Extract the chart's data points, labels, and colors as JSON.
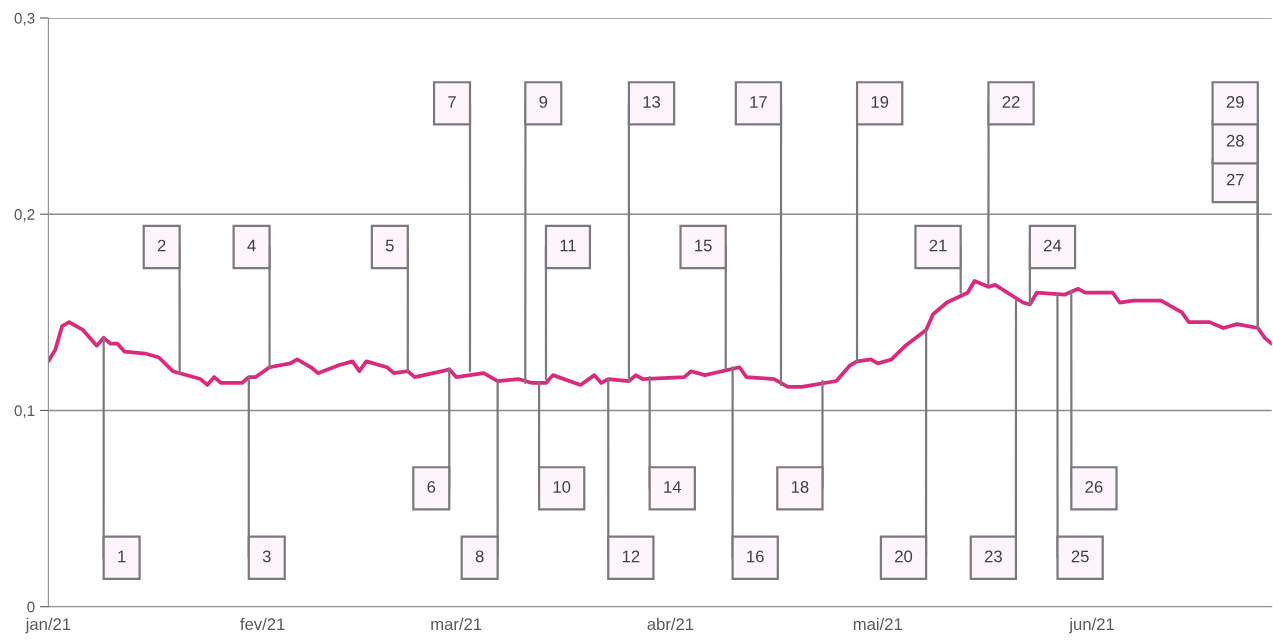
{
  "chart_data": {
    "type": "line",
    "x": [
      "2021-01-01",
      "2021-01-02",
      "2021-01-03",
      "2021-01-04",
      "2021-01-06",
      "2021-01-08",
      "2021-01-09",
      "2021-01-10",
      "2021-01-11",
      "2021-01-12",
      "2021-01-15",
      "2021-01-17",
      "2021-01-19",
      "2021-01-23",
      "2021-01-24",
      "2021-01-25",
      "2021-01-26",
      "2021-01-29",
      "2021-01-30",
      "2021-01-31",
      "2021-02-02",
      "2021-02-05",
      "2021-02-06",
      "2021-02-08",
      "2021-02-09",
      "2021-02-12",
      "2021-02-14",
      "2021-02-15",
      "2021-02-16",
      "2021-02-19",
      "2021-02-20",
      "2021-02-22",
      "2021-02-23",
      "2021-02-27",
      "2021-02-28",
      "2021-03-01",
      "2021-03-05",
      "2021-03-07",
      "2021-03-10",
      "2021-03-12",
      "2021-03-14",
      "2021-03-15",
      "2021-03-19",
      "2021-03-21",
      "2021-03-22",
      "2021-03-23",
      "2021-03-26",
      "2021-03-27",
      "2021-03-28",
      "2021-04-03",
      "2021-04-04",
      "2021-04-06",
      "2021-04-11",
      "2021-04-12",
      "2021-04-16",
      "2021-04-18",
      "2021-04-20",
      "2021-04-25",
      "2021-04-27",
      "2021-04-28",
      "2021-04-30",
      "2021-05-01",
      "2021-05-03",
      "2021-05-05",
      "2021-05-08",
      "2021-05-09",
      "2021-05-11",
      "2021-05-14",
      "2021-05-15",
      "2021-05-17",
      "2021-05-18",
      "2021-05-22",
      "2021-05-23",
      "2021-05-24",
      "2021-05-28",
      "2021-05-30",
      "2021-05-31",
      "2021-06-04",
      "2021-06-05",
      "2021-06-07",
      "2021-06-11",
      "2021-06-14",
      "2021-06-15",
      "2021-06-18",
      "2021-06-20",
      "2021-06-22",
      "2021-06-25",
      "2021-06-26",
      "2021-06-27"
    ],
    "series": [
      {
        "color": "#d92a7e",
        "values": [
          0.125,
          0.131,
          0.143,
          0.145,
          0.141,
          0.133,
          0.137,
          0.134,
          0.134,
          0.13,
          0.129,
          0.127,
          0.12,
          0.116,
          0.113,
          0.117,
          0.114,
          0.114,
          0.117,
          0.117,
          0.122,
          0.124,
          0.126,
          0.122,
          0.119,
          0.123,
          0.125,
          0.12,
          0.125,
          0.122,
          0.119,
          0.12,
          0.117,
          0.12,
          0.121,
          0.117,
          0.119,
          0.115,
          0.116,
          0.114,
          0.114,
          0.118,
          0.113,
          0.118,
          0.114,
          0.116,
          0.115,
          0.118,
          0.116,
          0.117,
          0.12,
          0.118,
          0.122,
          0.117,
          0.116,
          0.112,
          0.112,
          0.115,
          0.123,
          0.125,
          0.126,
          0.124,
          0.126,
          0.133,
          0.141,
          0.149,
          0.155,
          0.16,
          0.166,
          0.163,
          0.164,
          0.155,
          0.154,
          0.16,
          0.159,
          0.162,
          0.16,
          0.16,
          0.155,
          0.156,
          0.156,
          0.15,
          0.145,
          0.145,
          0.142,
          0.144,
          0.142,
          0.137,
          0.134
        ]
      }
    ],
    "xlim": [
      "2021-01-01",
      "2021-06-27"
    ],
    "xticks": [
      {
        "value": "2021-01-01",
        "label": "jan/21"
      },
      {
        "value": "2021-02-01",
        "label": "fev/21"
      },
      {
        "value": "2021-03-01",
        "label": "mar/21"
      },
      {
        "value": "2021-04-01",
        "label": "abr/21"
      },
      {
        "value": "2021-05-01",
        "label": "mai/21"
      },
      {
        "value": "2021-06-01",
        "label": "jun/21"
      }
    ],
    "ylim": [
      0,
      0.3
    ],
    "yticks": [
      {
        "value": 0,
        "label": "0"
      },
      {
        "value": 0.1,
        "label": "0,1"
      },
      {
        "value": 0.2,
        "label": "0,2"
      },
      {
        "value": 0.3,
        "label": "0,3"
      }
    ],
    "grid": "y",
    "marker": "none",
    "line_style": "solid",
    "annotations": [
      {
        "text": "1",
        "x": "2021-01-09",
        "y": 0.137
      },
      {
        "text": "2",
        "x": "2021-01-20",
        "y": 0.119
      },
      {
        "text": "3",
        "x": "2021-01-30",
        "y": 0.117
      },
      {
        "text": "4",
        "x": "2021-02-02",
        "y": 0.122
      },
      {
        "text": "5",
        "x": "2021-02-22",
        "y": 0.12
      },
      {
        "text": "6",
        "x": "2021-02-28",
        "y": 0.121
      },
      {
        "text": "7",
        "x": "2021-03-03",
        "y": 0.12
      },
      {
        "text": "8",
        "x": "2021-03-07",
        "y": 0.115
      },
      {
        "text": "9",
        "x": "2021-03-11",
        "y": 0.114
      },
      {
        "text": "10",
        "x": "2021-03-13",
        "y": 0.114
      },
      {
        "text": "11",
        "x": "2021-03-14",
        "y": 0.116
      },
      {
        "text": "12",
        "x": "2021-03-23",
        "y": 0.116
      },
      {
        "text": "13",
        "x": "2021-03-26",
        "y": 0.115
      },
      {
        "text": "14",
        "x": "2021-03-29",
        "y": 0.117
      },
      {
        "text": "15",
        "x": "2021-04-09",
        "y": 0.121
      },
      {
        "text": "16",
        "x": "2021-04-10",
        "y": 0.122
      },
      {
        "text": "17",
        "x": "2021-04-17",
        "y": 0.113
      },
      {
        "text": "18",
        "x": "2021-04-23",
        "y": 0.115
      },
      {
        "text": "19",
        "x": "2021-04-28",
        "y": 0.125
      },
      {
        "text": "20",
        "x": "2021-05-08",
        "y": 0.141
      },
      {
        "text": "21",
        "x": "2021-05-13",
        "y": 0.16
      },
      {
        "text": "22",
        "x": "2021-05-17",
        "y": 0.164
      },
      {
        "text": "23",
        "x": "2021-05-21",
        "y": 0.156
      },
      {
        "text": "24",
        "x": "2021-05-23",
        "y": 0.154
      },
      {
        "text": "25",
        "x": "2021-05-27",
        "y": 0.159
      },
      {
        "text": "26",
        "x": "2021-05-29",
        "y": 0.161
      },
      {
        "text": "27",
        "x": "2021-06-25",
        "y": 0.142
      },
      {
        "text": "28",
        "x": "2021-06-25",
        "y": 0.142
      },
      {
        "text": "29",
        "x": "2021-06-25",
        "y": 0.142
      }
    ]
  }
}
